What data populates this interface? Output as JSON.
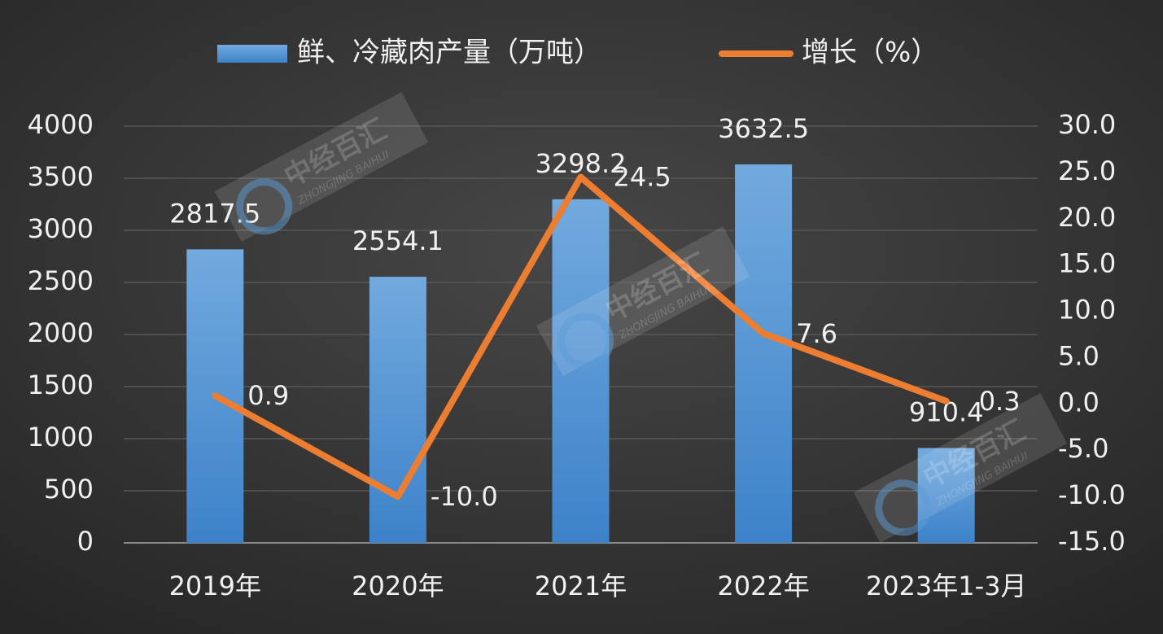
{
  "chart_data": {
    "type": "bar-line",
    "categories": [
      "2019年",
      "2020年",
      "2021年",
      "2022年",
      "2023年1-3月"
    ],
    "series": [
      {
        "name": "鲜、冷藏肉产量（万吨）",
        "type": "bar",
        "color": "#5b9bd5",
        "values": [
          2817.5,
          2554.1,
          3298.2,
          3632.5,
          910.4
        ]
      },
      {
        "name": "增长（%）",
        "type": "line",
        "axis": "y2",
        "color": "#ed7d31",
        "values": [
          0.9,
          -10.0,
          24.5,
          7.6,
          0.3
        ],
        "value_labels": [
          "0.9",
          "-10.0",
          "24.5",
          "7.6",
          "0.3"
        ]
      }
    ],
    "ylim": [
      0,
      4000
    ],
    "yticks": [
      0,
      500,
      1000,
      1500,
      2000,
      2500,
      3000,
      3500,
      4000
    ],
    "y2lim": [
      -15,
      30
    ],
    "y2ticks": [
      {
        "value": -15,
        "label": "-15.0"
      },
      {
        "value": -10,
        "label": "-10.0"
      },
      {
        "value": -5,
        "label": "-5.0"
      },
      {
        "value": 0,
        "label": "0.0"
      },
      {
        "value": 5,
        "label": "5.0"
      },
      {
        "value": 10,
        "label": "10.0"
      },
      {
        "value": 15,
        "label": "15.0"
      },
      {
        "value": 20,
        "label": "20.0"
      },
      {
        "value": 25,
        "label": "25.0"
      },
      {
        "value": 30,
        "label": "30.0"
      }
    ],
    "grid": true,
    "legend": "top",
    "watermark": "中经百汇",
    "watermark_sub": "ZHONGJING BAIHUI"
  }
}
